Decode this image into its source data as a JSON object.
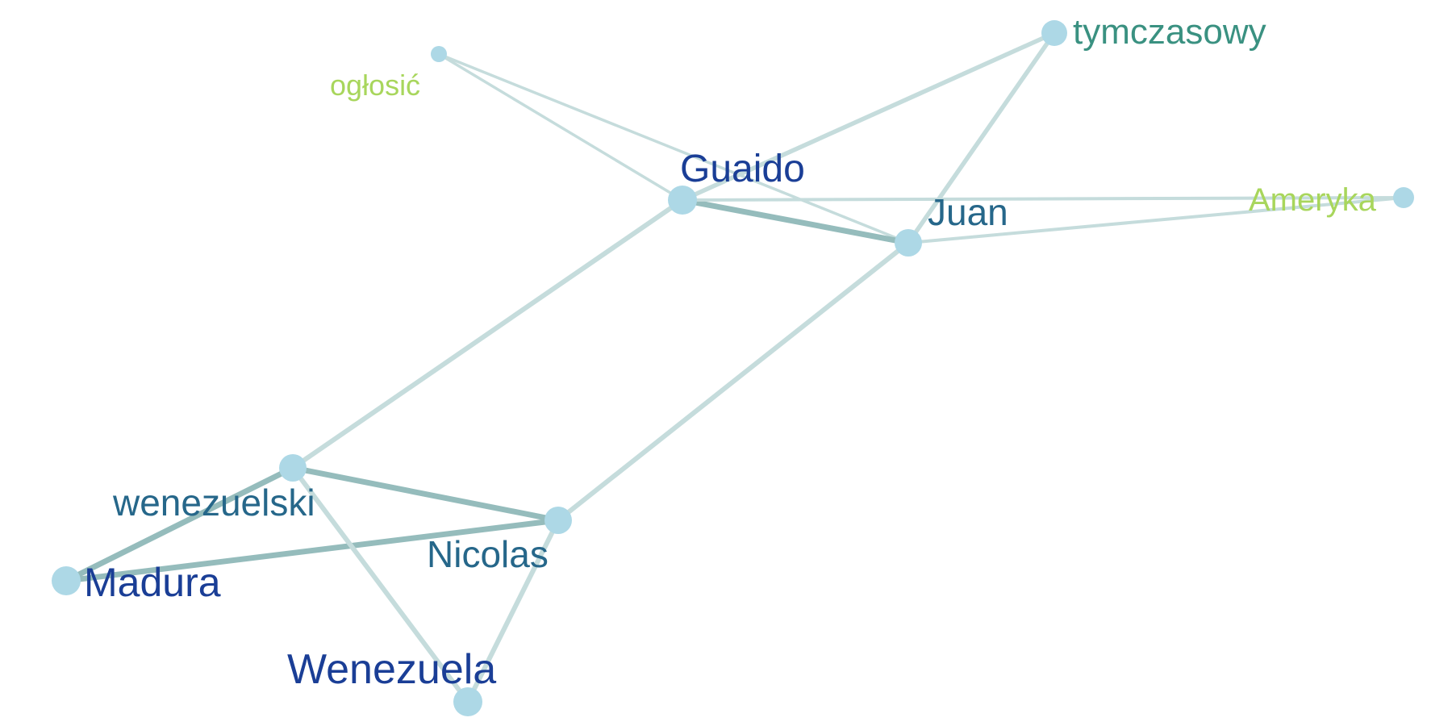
{
  "graph": {
    "nodes": [
      {
        "id": "oglosic",
        "label": "ogłosić",
        "color": "#a8d65c"
      },
      {
        "id": "tymczasowy",
        "label": "tymczasowy",
        "color": "#3a9181"
      },
      {
        "id": "guaido",
        "label": "Guaido",
        "color": "#1a3e96"
      },
      {
        "id": "juan",
        "label": "Juan",
        "color": "#26678a"
      },
      {
        "id": "ameryka",
        "label": "Ameryka",
        "color": "#a8d65c"
      },
      {
        "id": "wenezuelski",
        "label": "wenezuelski",
        "color": "#26678a"
      },
      {
        "id": "nicolas",
        "label": "Nicolas",
        "color": "#26678a"
      },
      {
        "id": "madura",
        "label": "Madura",
        "color": "#1a3e96"
      },
      {
        "id": "wenezuela",
        "label": "Wenezuela",
        "color": "#1a3e96"
      }
    ],
    "edges": [
      {
        "source": "oglosic",
        "target": "guaido"
      },
      {
        "source": "oglosic",
        "target": "juan"
      },
      {
        "source": "guaido",
        "target": "tymczasowy"
      },
      {
        "source": "tymczasowy",
        "target": "juan"
      },
      {
        "source": "guaido",
        "target": "juan"
      },
      {
        "source": "guaido",
        "target": "ameryka"
      },
      {
        "source": "juan",
        "target": "ameryka"
      },
      {
        "source": "guaido",
        "target": "wenezuelski"
      },
      {
        "source": "juan",
        "target": "nicolas"
      },
      {
        "source": "wenezuelski",
        "target": "nicolas"
      },
      {
        "source": "wenezuelski",
        "target": "madura"
      },
      {
        "source": "madura",
        "target": "nicolas"
      },
      {
        "source": "wenezuelski",
        "target": "wenezuela"
      },
      {
        "source": "nicolas",
        "target": "wenezuela"
      }
    ],
    "node_fill": "#add8e6",
    "edge_light": "#c5dcdc",
    "edge_dark": "#95bcbc"
  }
}
